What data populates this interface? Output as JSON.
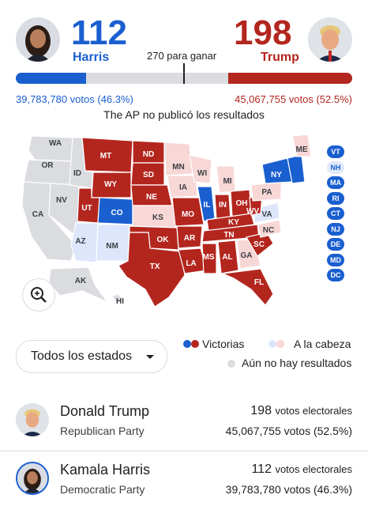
{
  "header": {
    "harris": {
      "ev": "112",
      "name": "Harris",
      "votes": "39,783,780 votos (46.3%)",
      "ev_share": 0.208
    },
    "trump": {
      "ev": "198",
      "name": "Trump",
      "votes": "45,067,755 votos (52.5%)",
      "ev_share": 0.368
    },
    "threshold": "270 para ganar",
    "ap_note": "The AP no publicó los resultados"
  },
  "colors": {
    "dem": "#1a5fd0",
    "rep": "#b3261e",
    "dem_lead": "#dde6fb",
    "rep_lead": "#f8d7d7",
    "no_result": "#dadce0"
  },
  "map": {
    "states": [
      "WA",
      "OR",
      "CA",
      "NV",
      "ID",
      "MT",
      "WY",
      "UT",
      "AZ",
      "CO",
      "NM",
      "ND",
      "SD",
      "NE",
      "KS",
      "OK",
      "TX",
      "MN",
      "IA",
      "MO",
      "AR",
      "LA",
      "WI",
      "IL",
      "MI",
      "IN",
      "OH",
      "KY",
      "TN",
      "MS",
      "AL",
      "GA",
      "FL",
      "SC",
      "NC",
      "VA",
      "WV",
      "PA",
      "NY",
      "ME",
      "AK",
      "HI"
    ],
    "east_pills": [
      "VT",
      "NH",
      "MA",
      "RI",
      "CT",
      "NJ",
      "DE",
      "MD",
      "DC"
    ]
  },
  "controls": {
    "zoom_icon": "zoom-in-icon",
    "filter_label": "Todos los estados"
  },
  "legend": {
    "won": "Victorias",
    "leading": "A la cabeza",
    "none": "Aún no hay resultados"
  },
  "candidates": [
    {
      "name": "Donald Trump",
      "party": "Republican Party",
      "ev": "198",
      "ev_label": "votos electorales",
      "votes": "45,067,755 votos (52.5%)"
    },
    {
      "name": "Kamala Harris",
      "party": "Democratic Party",
      "ev": "112",
      "ev_label": "votos electorales",
      "votes": "39,783,780 votos (46.3%)"
    }
  ]
}
